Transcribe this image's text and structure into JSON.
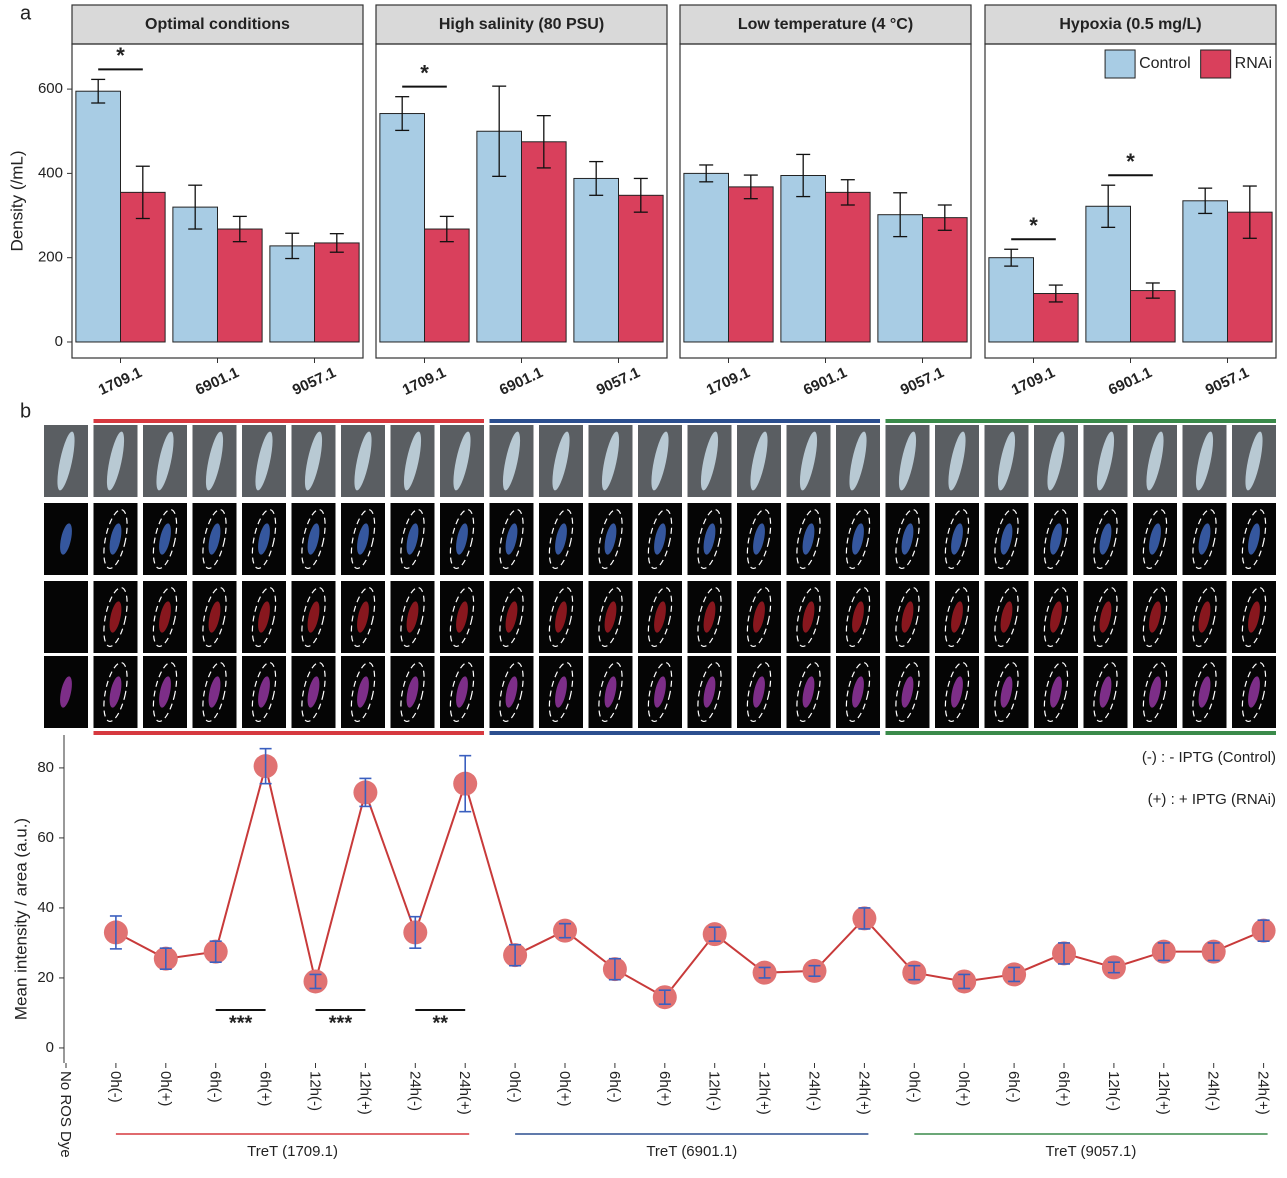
{
  "panel_labels": [
    "a",
    "b"
  ],
  "chart_data": [
    {
      "type": "bar",
      "title": "Optimal  conditions",
      "ylabel": "Density (/mL)",
      "categories": [
        "1709.1",
        "6901.1",
        "9057.1"
      ],
      "series": [
        {
          "color": "#a8cce4",
          "values": [
            595,
            320,
            228
          ],
          "errors": [
            28,
            52,
            30
          ]
        },
        {
          "color": "#d9405c",
          "values": [
            355,
            268,
            235
          ],
          "errors": [
            62,
            30,
            22
          ]
        }
      ],
      "ylim": [
        -38,
        707
      ],
      "yticks": [
        0,
        200,
        400,
        600
      ],
      "annotations": [
        {
          "text": "*",
          "category": "1709.1"
        }
      ]
    },
    {
      "type": "bar",
      "title": "High salinity (80 PSU)",
      "categories": [
        "1709.1",
        "6901.1",
        "9057.1"
      ],
      "series": [
        {
          "color": "#a8cce4",
          "values": [
            542,
            500,
            388
          ],
          "errors": [
            40,
            107,
            40
          ]
        },
        {
          "color": "#d9405c",
          "values": [
            268,
            475,
            348
          ],
          "errors": [
            30,
            62,
            40
          ]
        }
      ],
      "ylim": [
        -38,
        707
      ],
      "annotations": [
        {
          "text": "*",
          "category": "1709.1"
        }
      ]
    },
    {
      "type": "bar",
      "title": "Low temperature (4 °C)",
      "categories": [
        "1709.1",
        "6901.1",
        "9057.1"
      ],
      "series": [
        {
          "color": "#a8cce4",
          "values": [
            400,
            395,
            302
          ],
          "errors": [
            20,
            50,
            52
          ]
        },
        {
          "color": "#d9405c",
          "values": [
            368,
            355,
            295
          ],
          "errors": [
            28,
            30,
            30
          ]
        }
      ],
      "ylim": [
        -38,
        707
      ]
    },
    {
      "type": "bar",
      "title": "Hypoxia (0.5 mg/L)",
      "categories": [
        "1709.1",
        "6901.1",
        "9057.1"
      ],
      "series": [
        {
          "name": "Control",
          "color": "#a8cce4",
          "values": [
            200,
            322,
            335
          ],
          "errors": [
            20,
            50,
            30
          ]
        },
        {
          "name": "RNAi",
          "color": "#d9405c",
          "values": [
            115,
            122,
            308
          ],
          "errors": [
            20,
            18,
            62
          ]
        }
      ],
      "ylim": [
        -38,
        707
      ],
      "legend": "top-right",
      "annotations": [
        {
          "text": "*",
          "category": "1709.1"
        },
        {
          "text": "*",
          "category": "6901.1"
        }
      ]
    },
    {
      "type": "line",
      "ylabel": "Mean intensity / area (a.u.)",
      "categories": [
        "No ROS Dye",
        "0h(-)",
        "0h(+)",
        "6h(-)",
        "6h(+)",
        "12h(-)",
        "12h(+)",
        "24h(-)",
        "24h(+)",
        "0h(-)",
        "0h(+)",
        "6h(-)",
        "6h(+)",
        "12h(-)",
        "12h(+)",
        "24h(-)",
        "24h(+)",
        "0h(-)",
        "0h(+)",
        "6h(-)",
        "6h(+)",
        "12h(-)",
        "12h(+)",
        "24h(-)",
        "24h(+)"
      ],
      "values": [
        null,
        33,
        25.5,
        27.5,
        80.5,
        19,
        73,
        33,
        75.5,
        26.5,
        33.5,
        22.5,
        14.5,
        32.5,
        21.5,
        22,
        37,
        21.5,
        19,
        21,
        27,
        23,
        27.5,
        27.5,
        33.5
      ],
      "errors": [
        null,
        4.7,
        3,
        3,
        5,
        2,
        4,
        4.5,
        8,
        3,
        2,
        3,
        2,
        2,
        1.5,
        1.5,
        3,
        2,
        2,
        2,
        3,
        1.5,
        2.5,
        2.5,
        3
      ],
      "color": "#c83a3a",
      "marker_color": "#e07272",
      "error_color": "#3a5fbf",
      "ylim": [
        -4.3,
        89.4
      ],
      "yticks": [
        0,
        20,
        40,
        60,
        80
      ],
      "annotations": [
        {
          "text": "***"
        },
        {
          "text": "***"
        },
        {
          "text": "**"
        }
      ],
      "notes": [
        "(-) : - IPTG (Control)",
        "(+) : + IPTG (RNAi)"
      ],
      "groups": [
        {
          "label": "TreT (1709.1)",
          "color": "#d6393f"
        },
        {
          "label": "TreT (6901.1)",
          "color": "#2c4f8f"
        },
        {
          "label": "TreT (9057.1)",
          "color": "#3a8a4a"
        }
      ]
    }
  ]
}
